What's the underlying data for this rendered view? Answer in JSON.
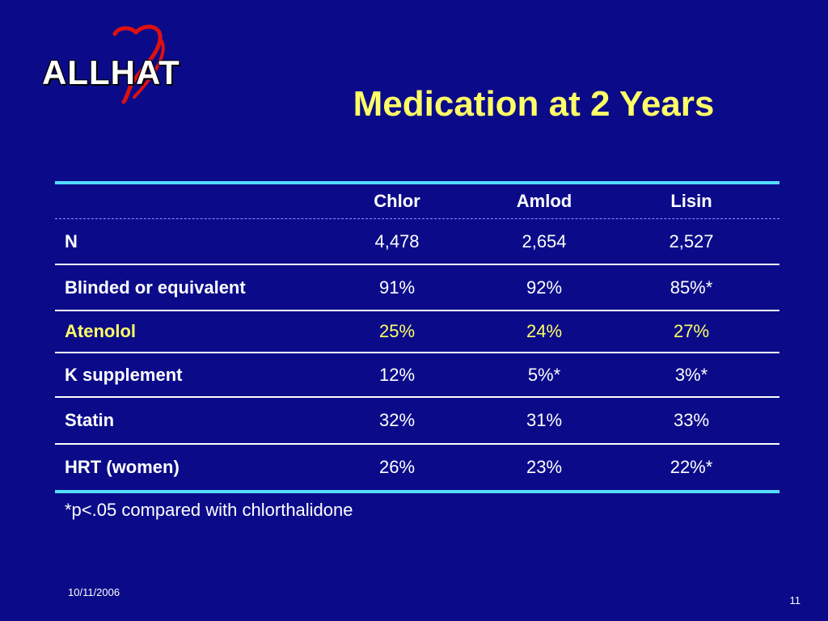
{
  "logo": {
    "text": "ALLHAT",
    "heart_color": "#dd1111"
  },
  "title": "Medication at 2 Years",
  "table": {
    "columns": [
      "Chlor",
      "Amlod",
      "Lisin"
    ],
    "rows": [
      {
        "label": "N",
        "values": [
          "4,478",
          "2,654",
          "2,527"
        ],
        "highlight": false
      },
      {
        "label": "Blinded or equivalent",
        "values": [
          "91%",
          "92%",
          "85%*"
        ],
        "highlight": false
      },
      {
        "label": "Atenolol",
        "values": [
          "25%",
          "24%",
          "27%"
        ],
        "highlight": true
      },
      {
        "label": "K supplement",
        "values": [
          "12%",
          "5%*",
          "3%*"
        ],
        "highlight": false
      },
      {
        "label": "Statin",
        "values": [
          "32%",
          "31%",
          "33%"
        ],
        "highlight": false
      },
      {
        "label": "HRT (women)",
        "values": [
          "26%",
          "23%",
          "22%*"
        ],
        "highlight": false
      }
    ]
  },
  "footnote": "*p<.05 compared with chlorthalidone",
  "footer": {
    "date": "10/11/2006",
    "page": "11"
  },
  "colors": {
    "background": "#0b0b8a",
    "title": "#ffff66",
    "rule": "#55ddff",
    "highlight": "#ffff66"
  }
}
